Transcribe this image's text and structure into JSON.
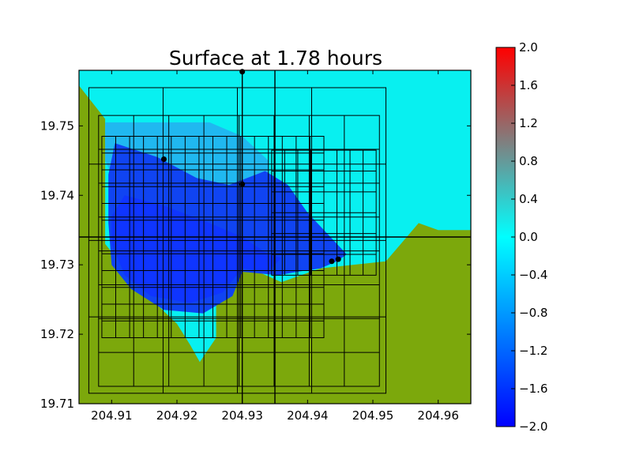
{
  "chart_data": {
    "type": "heatmap",
    "title": "Surface at 1.78 hours",
    "xlabel": "",
    "ylabel": "",
    "xlim": [
      204.905,
      204.965
    ],
    "ylim": [
      19.71,
      19.758
    ],
    "x_ticks": [
      {
        "value": 204.91,
        "label": "204.91"
      },
      {
        "value": 204.92,
        "label": "204.92"
      },
      {
        "value": 204.93,
        "label": "204.93"
      },
      {
        "value": 204.94,
        "label": "204.94"
      },
      {
        "value": 204.95,
        "label": "204.95"
      },
      {
        "value": 204.96,
        "label": "204.96"
      }
    ],
    "y_ticks": [
      {
        "value": 19.71,
        "label": "19.71"
      },
      {
        "value": 19.72,
        "label": "19.72"
      },
      {
        "value": 19.73,
        "label": "19.73"
      },
      {
        "value": 19.74,
        "label": "19.74"
      },
      {
        "value": 19.75,
        "label": "19.75"
      }
    ],
    "colorbar": {
      "range": [
        -2.0,
        2.0
      ],
      "colors": {
        "min": "#0000ff",
        "zero": "#00ffff",
        "max": "#ff0000"
      },
      "ticks": [
        {
          "value": 2.0,
          "label": "2.0"
        },
        {
          "value": 1.6,
          "label": "1.6"
        },
        {
          "value": 1.2,
          "label": "1.2"
        },
        {
          "value": 0.8,
          "label": "0.8"
        },
        {
          "value": 0.4,
          "label": "0.4"
        },
        {
          "value": 0.0,
          "label": "0.0"
        },
        {
          "value": -0.4,
          "label": "−0.4"
        },
        {
          "value": -0.8,
          "label": "−0.8"
        },
        {
          "value": -1.2,
          "label": "−1.2"
        },
        {
          "value": -1.6,
          "label": "−1.6"
        },
        {
          "value": -2.0,
          "label": "−2.0"
        }
      ]
    },
    "land_color": "#7ca80c",
    "regions": [
      {
        "name": "ocean-shallow",
        "color": "#08f0f0",
        "points": [
          [
            204.905,
            19.758
          ],
          [
            204.965,
            19.758
          ],
          [
            204.965,
            19.735
          ],
          [
            204.96,
            19.735
          ],
          [
            204.957,
            19.736
          ],
          [
            204.952,
            19.7305
          ],
          [
            204.942,
            19.7295
          ],
          [
            204.936,
            19.7275
          ],
          [
            204.93,
            19.73
          ],
          [
            204.926,
            19.7245
          ],
          [
            204.926,
            19.7195
          ],
          [
            204.9235,
            19.716
          ],
          [
            204.922,
            19.7185
          ],
          [
            204.92,
            19.7215
          ],
          [
            204.915,
            19.726
          ],
          [
            204.909,
            19.733
          ],
          [
            204.909,
            19.745
          ],
          [
            204.909,
            19.751
          ],
          [
            204.904,
            19.757
          ]
        ]
      },
      {
        "name": "inner-bay",
        "color": "#20b8f0",
        "points": [
          [
            204.909,
            19.7505
          ],
          [
            204.925,
            19.7505
          ],
          [
            204.93,
            19.7485
          ],
          [
            204.934,
            19.745
          ],
          [
            204.934,
            19.742
          ],
          [
            204.926,
            19.7395
          ],
          [
            204.918,
            19.7395
          ],
          [
            204.911,
            19.741
          ],
          [
            204.909,
            19.745
          ]
        ]
      },
      {
        "name": "deep-water",
        "color": "#1044f2",
        "points": [
          [
            204.9105,
            19.7475
          ],
          [
            204.917,
            19.7455
          ],
          [
            204.923,
            19.7425
          ],
          [
            204.928,
            19.7415
          ],
          [
            204.9335,
            19.7435
          ],
          [
            204.937,
            19.7415
          ],
          [
            204.94,
            19.7375
          ],
          [
            204.9435,
            19.734
          ],
          [
            204.946,
            19.7315
          ],
          [
            204.9445,
            19.7305
          ],
          [
            204.942,
            19.7295
          ],
          [
            204.9385,
            19.729
          ],
          [
            204.9355,
            19.7285
          ],
          [
            204.93,
            19.729
          ],
          [
            204.9285,
            19.7255
          ],
          [
            204.924,
            19.723
          ],
          [
            204.918,
            19.7235
          ],
          [
            204.913,
            19.7265
          ],
          [
            204.91,
            19.73
          ],
          [
            204.9095,
            19.736
          ],
          [
            204.9095,
            19.743
          ]
        ]
      },
      {
        "name": "darkest-water",
        "color": "#0f35ff",
        "points": [
          [
            204.912,
            19.74
          ],
          [
            204.918,
            19.7385
          ],
          [
            204.925,
            19.736
          ],
          [
            204.93,
            19.734
          ],
          [
            204.934,
            19.7315
          ],
          [
            204.936,
            19.731
          ],
          [
            204.934,
            19.729
          ],
          [
            204.93,
            19.7295
          ],
          [
            204.927,
            19.726
          ],
          [
            204.922,
            19.7245
          ],
          [
            204.916,
            19.7255
          ],
          [
            204.912,
            19.7285
          ],
          [
            204.91,
            19.733
          ],
          [
            204.91,
            19.737
          ]
        ]
      }
    ],
    "grid_patches": [
      {
        "x": [
          204.9065,
          204.952
        ],
        "y": [
          19.7115,
          19.7555
        ],
        "nx": 4,
        "ny": 4
      },
      {
        "x": [
          204.908,
          204.951
        ],
        "y": [
          19.7125,
          19.7515
        ],
        "nx": 8,
        "ny": 8
      },
      {
        "x": [
          204.9085,
          204.9425
        ],
        "y": [
          19.7195,
          19.7485
        ],
        "nx": 16,
        "ny": 12
      },
      {
        "x": [
          204.9345,
          204.9505
        ],
        "y": [
          19.7285,
          19.7465
        ],
        "nx": 8,
        "ny": 6
      }
    ],
    "major_lines": {
      "x": [
        204.93,
        204.935
      ],
      "y": [
        19.734
      ]
    },
    "gauges": [
      [
        204.93,
        19.7578
      ],
      [
        204.918,
        19.7452
      ],
      [
        204.93,
        19.7416
      ],
      [
        204.9437,
        19.7305
      ],
      [
        204.9447,
        19.7308
      ]
    ]
  }
}
